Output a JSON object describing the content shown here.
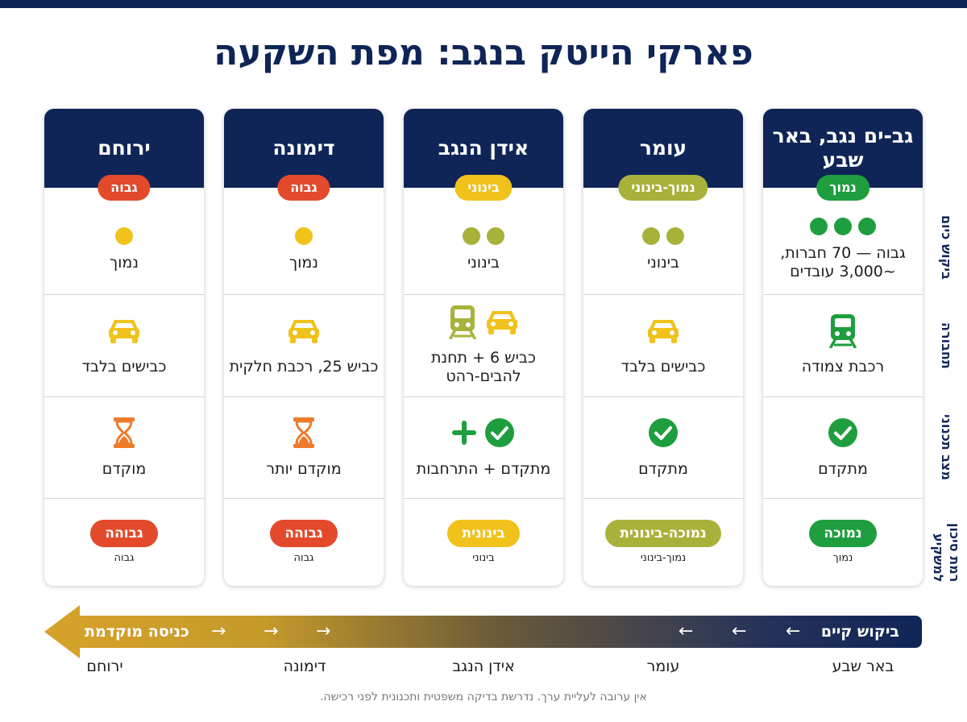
{
  "title": "פארקי הייטק בנגב: מפת השקעה",
  "row_labels": {
    "demand": "ביקוש כיום",
    "transport": "תחבורה",
    "planning": "מצב תכנוני",
    "risk": "רמת סיכון למשקיע"
  },
  "colors": {
    "navy": "#0f2557",
    "green": "#1e9e3e",
    "olive": "#a8b23a",
    "yellow": "#f0c21b",
    "red": "#e24a2b",
    "orange_icon": "#ee7b2c"
  },
  "locations": [
    {
      "name": "גב-ים נגב, באר שבע",
      "badge": "נמוך",
      "badge_color": "#1e9e3e",
      "demand_dots": 3,
      "demand_dot_color": "#1e9e3e",
      "demand_text": "גבוה — 70 חברות, ~3,000 עובדים",
      "transport_icons": [
        "train-icon"
      ],
      "transport_text": "רכבת צמודה",
      "planning_icons": [
        "check-circle-icon"
      ],
      "planning_text": "מתקדם",
      "risk_label": "נמוכה",
      "risk_color": "#1e9e3e",
      "risk_sub": "נמוך"
    },
    {
      "name": "עומר",
      "badge": "נמוך-בינוני",
      "badge_color": "#a8b23a",
      "demand_dots": 2,
      "demand_dot_color": "#a8b23a",
      "demand_text": "בינוני",
      "transport_icons": [
        "car-icon"
      ],
      "transport_text": "כבישים בלבד",
      "planning_icons": [
        "check-circle-icon"
      ],
      "planning_text": "מתקדם",
      "risk_label": "נמוכה-בינונית",
      "risk_color": "#a8b23a",
      "risk_sub": "נמוך-בינוני"
    },
    {
      "name": "אידן הנגב",
      "badge": "בינוני",
      "badge_color": "#f0c21b",
      "demand_dots": 2,
      "demand_dot_color": "#a8b23a",
      "demand_text": "בינוני",
      "transport_icons": [
        "car-icon",
        "train-icon"
      ],
      "transport_text": "כביש 6 + תחנת להבים-רהט",
      "planning_icons": [
        "check-circle-icon",
        "plus-icon"
      ],
      "planning_text": "מתקדם + התרחבות",
      "risk_label": "בינונית",
      "risk_color": "#f0c21b",
      "risk_sub": "בינוני"
    },
    {
      "name": "דימונה",
      "badge": "גבוה",
      "badge_color": "#e24a2b",
      "demand_dots": 1,
      "demand_dot_color": "#f0c21b",
      "demand_text": "נמוך",
      "transport_icons": [
        "car-icon"
      ],
      "transport_text": "כביש 25, רכבת חלקית",
      "planning_icons": [
        "hourglass-icon"
      ],
      "planning_text": "מוקדם יותר",
      "risk_label": "גבוהה",
      "risk_color": "#e24a2b",
      "risk_sub": "גבוה"
    },
    {
      "name": "ירוחם",
      "badge": "גבוה",
      "badge_color": "#e24a2b",
      "demand_dots": 1,
      "demand_dot_color": "#f0c21b",
      "demand_text": "נמוך",
      "transport_icons": [
        "car-icon"
      ],
      "transport_text": "כבישים בלבד",
      "planning_icons": [
        "hourglass-icon"
      ],
      "planning_text": "מוקדם",
      "risk_label": "גבוהה",
      "risk_color": "#e24a2b",
      "risk_sub": "גבוה"
    }
  ],
  "arrow": {
    "start_label": "ביקוש קיים",
    "end_label": "כניסה מוקדמת",
    "chevron_icon": "arrow-left-icon"
  },
  "timeline": [
    "באר שבע",
    "עומר",
    "אידן הנגב",
    "דימונה",
    "ירוחם"
  ],
  "footnote": "אין ערובה לעליית ערך. נדרשת בדיקה משפטית ותכנונית לפני רכישה."
}
